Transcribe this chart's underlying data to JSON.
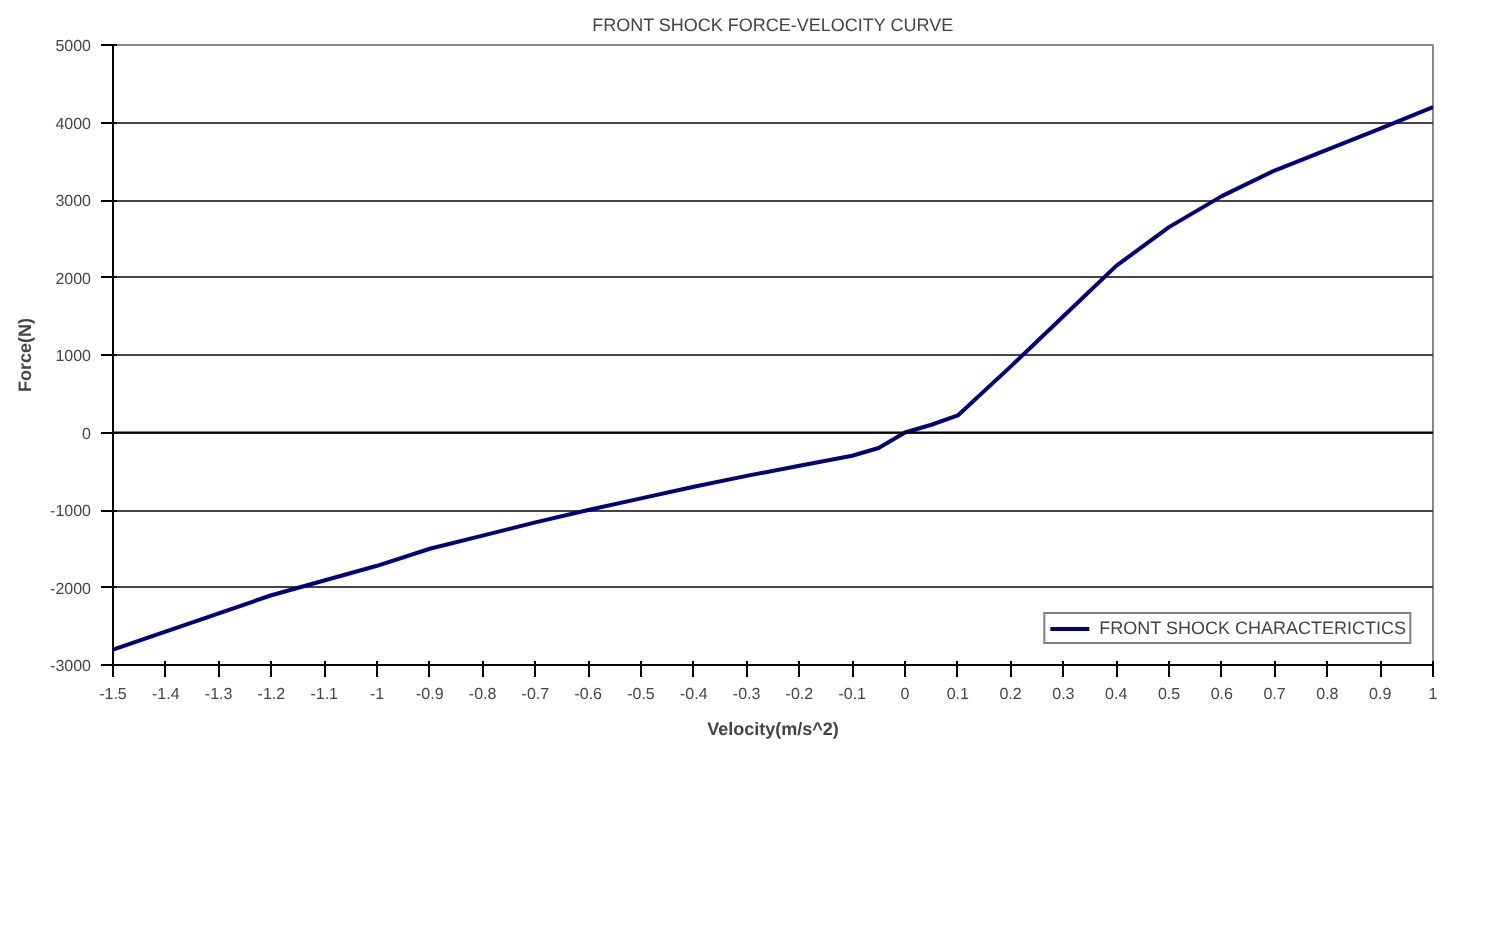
{
  "chart_data": {
    "type": "line",
    "title": "FRONT SHOCK FORCE-VELOCITY CURVE",
    "xlabel": "Velocity(m/s^2)",
    "ylabel": "Force(N)",
    "x": [
      -1.5,
      -1.2,
      -1.0,
      -0.9,
      -0.8,
      -0.7,
      -0.6,
      -0.5,
      -0.4,
      -0.3,
      -0.2,
      -0.1,
      -0.05,
      0,
      0.05,
      0.1,
      0.2,
      0.3,
      0.4,
      0.5,
      0.6,
      0.7,
      0.8,
      0.9,
      1.0
    ],
    "series": [
      {
        "name": "FRONT SHOCK CHARACTERICTICS",
        "color": "#000080",
        "values": [
          -2800,
          -2100,
          -1720,
          -1500,
          -1330,
          -1160,
          -1000,
          -850,
          -700,
          -560,
          -430,
          -300,
          -200,
          0,
          100,
          220,
          850,
          1500,
          2150,
          2650,
          3050,
          3380,
          3650,
          3920,
          4200
        ]
      }
    ],
    "xlim": [
      -1.5,
      1
    ],
    "ylim": [
      -3000,
      5000
    ],
    "xticks": [
      {
        "value": -1.5,
        "label": "-1.5"
      },
      {
        "value": -1.4,
        "label": "-1.4"
      },
      {
        "value": -1.3,
        "label": "-1.3"
      },
      {
        "value": -1.2,
        "label": "-1.2"
      },
      {
        "value": -1.1,
        "label": "-1.1"
      },
      {
        "value": -1,
        "label": "-1"
      },
      {
        "value": -0.9,
        "label": "-0.9"
      },
      {
        "value": -0.8,
        "label": "-0.8"
      },
      {
        "value": -0.7,
        "label": "-0.7"
      },
      {
        "value": -0.6,
        "label": "-0.6"
      },
      {
        "value": -0.5,
        "label": "-0.5"
      },
      {
        "value": -0.4,
        "label": "-0.4"
      },
      {
        "value": -0.3,
        "label": "-0.3"
      },
      {
        "value": -0.2,
        "label": "-0.2"
      },
      {
        "value": -0.1,
        "label": "-0.1"
      },
      {
        "value": 0,
        "label": "0"
      },
      {
        "value": 0.1,
        "label": "0.1"
      },
      {
        "value": 0.2,
        "label": "0.2"
      },
      {
        "value": 0.3,
        "label": "0.3"
      },
      {
        "value": 0.4,
        "label": "0.4"
      },
      {
        "value": 0.5,
        "label": "0.5"
      },
      {
        "value": 0.6,
        "label": "0.6"
      },
      {
        "value": 0.7,
        "label": "0.7"
      },
      {
        "value": 0.8,
        "label": "0.8"
      },
      {
        "value": 0.9,
        "label": "0.9"
      },
      {
        "value": 1,
        "label": "1"
      }
    ],
    "yticks": [
      -3000,
      -2000,
      -1000,
      0,
      1000,
      2000,
      3000,
      4000,
      5000
    ],
    "grid": "y",
    "legend": "bottom right"
  }
}
